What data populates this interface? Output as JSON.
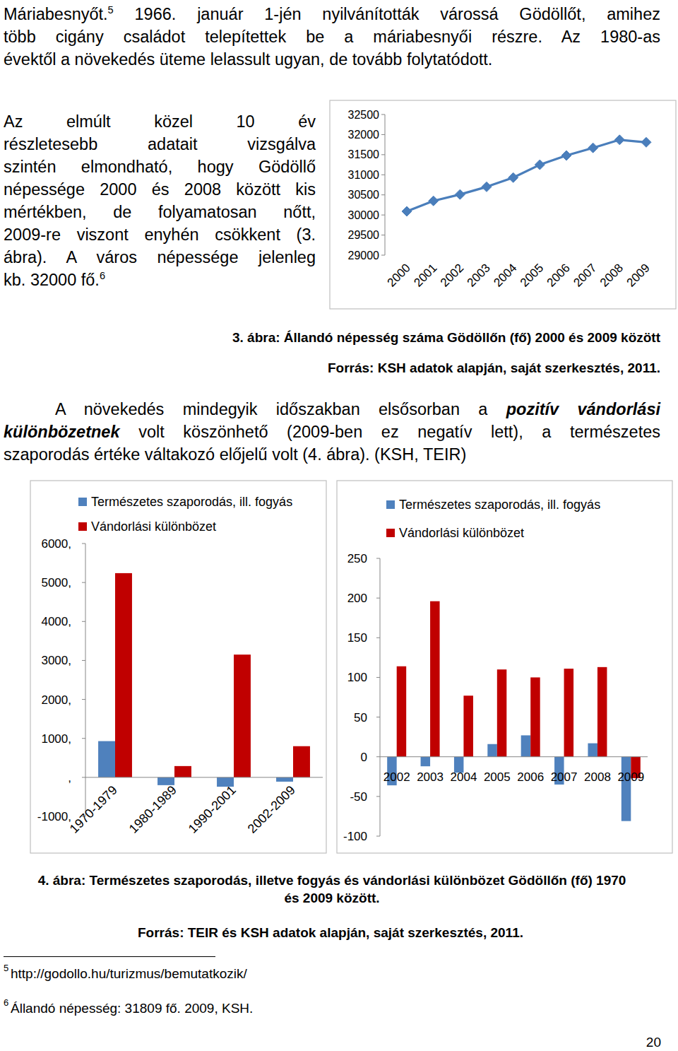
{
  "paragraphs": [
    {
      "lines": [
        [
          {
            "text": "Máriabesnyőt."
          },
          {
            "text": "5",
            "style": "sup"
          },
          {
            "text": " 1966. január 1-jén nyilvánították várossá Gödöllőt, amihez"
          }
        ],
        [
          {
            "text": "több cigány családot telepítettek be a máriabesnyői részre. Az 1980-as"
          }
        ],
        [
          {
            "text": "évektől a növekedés üteme lelassult ugyan, de tovább folytatódott."
          }
        ]
      ]
    },
    {
      "lines": [
        [
          {
            "text": "Az elmúlt közel 10 év"
          }
        ],
        [
          {
            "text": "részletesebb adatait vizsgálva"
          }
        ],
        [
          {
            "text": "szintén elmondható, hogy Gödöllő"
          }
        ],
        [
          {
            "text": "népessége 2000 és 2008 között kis"
          }
        ],
        [
          {
            "text": "mértékben, de folyamatosan nőtt,"
          }
        ],
        [
          {
            "text": "2009-re viszont enyhén csökkent (3."
          }
        ],
        [
          {
            "text": "ábra). A város népessége jelenleg"
          }
        ],
        [
          {
            "text": "kb. 32000 fő."
          },
          {
            "text": "6",
            "style": "sup"
          }
        ]
      ]
    },
    {
      "lines": [
        [
          {
            "text": "A növekedés mindegyik időszakban elsősorban a "
          },
          {
            "text": "pozitív vándorlási",
            "style": "bold-italic"
          }
        ],
        [
          {
            "text": "különbözetnek",
            "style": "bold-italic"
          },
          {
            "text": " volt köszönhető (2009-ben ez negatív lett), a természetes"
          }
        ],
        [
          {
            "text": "szaporodás értéke váltakozó előjelű volt (4. ábra). (KSH, TEIR)"
          }
        ]
      ]
    }
  ],
  "chart_data": [
    {
      "type": "line",
      "categories": [
        "2000",
        "2001",
        "2002",
        "2003",
        "2004",
        "2005",
        "2006",
        "2007",
        "2008",
        "2009"
      ],
      "values": [
        30090,
        30350,
        30510,
        30700,
        30930,
        31250,
        31480,
        31670,
        31870,
        31809
      ],
      "color": "#4a7ebb",
      "marker": "diamond",
      "grid": false,
      "ylim": [
        29000,
        32500
      ],
      "yticks": [
        29000,
        29500,
        30000,
        30500,
        31000,
        31500,
        32000,
        32500
      ]
    },
    {
      "type": "bar",
      "categories": [
        "1970-1979",
        "1980-1989",
        "1990-2001",
        "2002-2009"
      ],
      "series": [
        {
          "name": "Természetes szaporodás, ill. fogyás",
          "color": "#4f81bd",
          "values": [
            930,
            -200,
            -240,
            -110
          ]
        },
        {
          "name": "Vándorlási különbözet",
          "color": "#c00000",
          "values": [
            5240,
            290,
            3150,
            800
          ]
        }
      ],
      "legend": "top",
      "grid": false,
      "ylim": [
        -1000,
        6000
      ],
      "yticks": [
        {
          "value": -1000,
          "label": "-1000,"
        },
        {
          "value": 0,
          "label": ","
        },
        {
          "value": 1000,
          "label": "1000,"
        },
        {
          "value": 2000,
          "label": "2000,"
        },
        {
          "value": 3000,
          "label": "3000,"
        },
        {
          "value": 4000,
          "label": "4000,"
        },
        {
          "value": 5000,
          "label": "5000,"
        },
        {
          "value": 6000,
          "label": "6000,"
        }
      ]
    },
    {
      "type": "bar",
      "categories": [
        "2002",
        "2003",
        "2004",
        "2005",
        "2006",
        "2007",
        "2008",
        "2009"
      ],
      "series": [
        {
          "name": "Természetes szaporodás, ill. fogyás",
          "color": "#4f81bd",
          "values": [
            -36,
            -12,
            -20,
            16,
            27,
            -35,
            17,
            -81
          ]
        },
        {
          "name": "Vándorlási különbözet",
          "color": "#c00000",
          "values": [
            114,
            196,
            77,
            110,
            100,
            111,
            113,
            -27
          ]
        }
      ],
      "legend": "top",
      "grid": false,
      "ylim": [
        -100,
        250
      ],
      "yticks": [
        -100,
        -50,
        0,
        50,
        100,
        150,
        200,
        250
      ]
    }
  ],
  "captions": [
    {
      "lines": [
        "3. ábra: Állandó népesség száma Gödöllőn (fő) 2000 és 2009 között"
      ]
    },
    {
      "lines": [
        "Forrás: KSH adatok alapján, saját szerkesztés, 2011."
      ]
    },
    {
      "lines": [
        "4. ábra: Természetes szaporodás, illetve fogyás és vándorlási különbözet Gödöllőn (fő) 1970",
        "és 2009 között."
      ]
    },
    {
      "lines": [
        "Forrás: TEIR és KSH adatok alapján, saját szerkesztés, 2011."
      ]
    }
  ],
  "footnotes": [
    {
      "mark": "5",
      "text": "http://godollo.hu/turizmus/bemutatkozik/"
    },
    {
      "mark": "6",
      "text": "Állandó népesség: 31809 fő. 2009, KSH."
    }
  ],
  "page_number": "20"
}
